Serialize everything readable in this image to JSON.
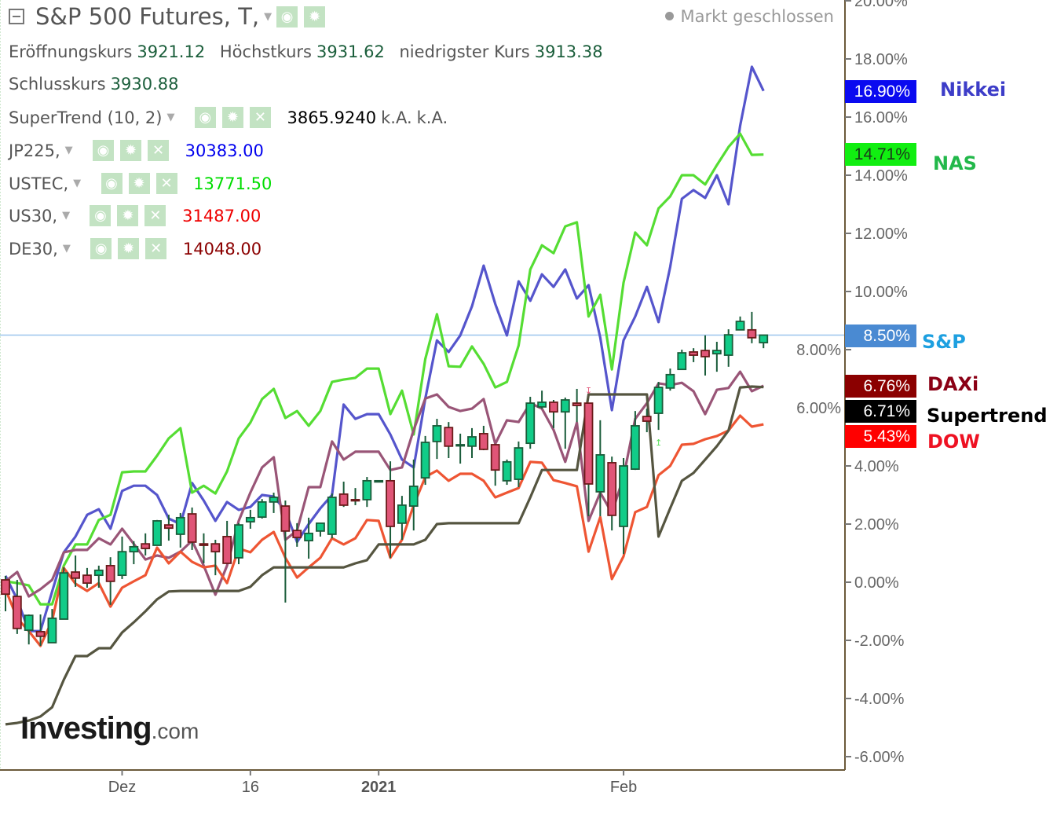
{
  "header": {
    "title": "S&P 500 Futures, T,",
    "open_label": "Eröffnungskurs",
    "open": "3921.12",
    "high_label": "Höchstkurs",
    "high": "3931.62",
    "low_label": "niedrigster Kurs",
    "low": "3913.38",
    "close_label": "Schlusskurs",
    "close": "3930.88",
    "status": "Markt geschlossen"
  },
  "indicators": [
    {
      "name": "SuperTrend (10, 2)",
      "value": "3865.9240",
      "extra1": "k.A.",
      "extra2": "k.A.",
      "color": "#000000"
    },
    {
      "name": "JP225,",
      "value": "30383.00",
      "color": "#0000ee"
    },
    {
      "name": "USTEC,",
      "value": "13771.50",
      "color": "#00dd00"
    },
    {
      "name": "US30,",
      "value": "31487.00",
      "color": "#ee0000"
    },
    {
      "name": "DE30,",
      "value": "14048.00",
      "color": "#8b0000"
    }
  ],
  "icons": {
    "eye": "eye-icon",
    "gear": "gear-icon",
    "close": "close-icon",
    "collapse": "collapse-icon",
    "dropdown": "chevron-down-icon"
  },
  "logo": {
    "main": "Investing",
    "suffix": ".com"
  },
  "right_labels": [
    {
      "value": "16.90%",
      "name": "Nikkei",
      "bg": "#0a0af0",
      "fg": "#ffffff",
      "name_color": "#3d3dc8"
    },
    {
      "value": "14.71%",
      "name": "NAS",
      "bg": "#11ee11",
      "fg": "#1a3a1a",
      "name_color": "#22b84a"
    },
    {
      "value": "8.50%",
      "name": "S&P",
      "bg": "#4a8ad2",
      "fg": "#ffffff",
      "name_color": "#1ea0e0"
    },
    {
      "value": "6.76%",
      "name": "DAXi",
      "bg": "#8b0000",
      "fg": "#ffffff",
      "name_color": "#8b0015"
    },
    {
      "value": "6.71%",
      "name": "Supertrend",
      "bg": "#000000",
      "fg": "#ffffff",
      "name_color": "#000000"
    },
    {
      "value": "5.43%",
      "name": "DOW",
      "bg": "#ff0000",
      "fg": "#ffffff",
      "name_color": "#ee1122"
    }
  ],
  "chart_data": {
    "type": "line",
    "yunit": "%",
    "ylim": [
      -6.46,
      20.03
    ],
    "yticks": [
      "-6.00%",
      "-4.00%",
      "-2.00%",
      "0.00%",
      "2.00%",
      "4.00%",
      "6.00%",
      "8.00%",
      "10.00%",
      "12.00%",
      "14.00%",
      "16.00%",
      "18.00%",
      "20.00%"
    ],
    "ytick_values": [
      -6,
      -4,
      -2,
      0,
      2,
      4,
      6,
      8,
      10,
      12,
      14,
      16,
      18,
      20
    ],
    "xticks": [
      {
        "label": "Dez",
        "date": "2020-12-01",
        "bold": false
      },
      {
        "label": "16",
        "date": "2020-12-16",
        "bold": false
      },
      {
        "label": "2021",
        "date": "2021-01-01",
        "bold": true
      },
      {
        "label": "Feb",
        "date": "2021-02-01",
        "bold": false
      }
    ],
    "grid": false,
    "reference_line": 8.5,
    "dates": [
      "2020-11-17",
      "2020-11-18",
      "2020-11-19",
      "2020-11-20",
      "2020-11-23",
      "2020-11-24",
      "2020-11-25",
      "2020-11-26",
      "2020-11-27",
      "2020-11-30",
      "2020-12-01",
      "2020-12-02",
      "2020-12-03",
      "2020-12-04",
      "2020-12-07",
      "2020-12-08",
      "2020-12-09",
      "2020-12-10",
      "2020-12-11",
      "2020-12-14",
      "2020-12-15",
      "2020-12-16",
      "2020-12-17",
      "2020-12-18",
      "2020-12-21",
      "2020-12-22",
      "2020-12-23",
      "2020-12-24",
      "2020-12-28",
      "2020-12-29",
      "2020-12-30",
      "2020-12-31",
      "2021-01-01",
      "2021-01-04",
      "2021-01-05",
      "2021-01-06",
      "2021-01-07",
      "2021-01-08",
      "2021-01-11",
      "2021-01-12",
      "2021-01-13",
      "2021-01-14",
      "2021-01-15",
      "2021-01-18",
      "2021-01-19",
      "2021-01-20",
      "2021-01-21",
      "2021-01-22",
      "2021-01-25",
      "2021-01-26",
      "2021-01-27",
      "2021-01-28",
      "2021-01-29",
      "2021-02-01",
      "2021-02-02",
      "2021-02-03",
      "2021-02-04",
      "2021-02-05",
      "2021-02-08",
      "2021-02-09",
      "2021-02-10",
      "2021-02-11",
      "2021-02-12",
      "2021-02-15",
      "2021-02-16",
      "2021-02-17"
    ],
    "series": [
      {
        "name": "Nikkei",
        "color": "#5555cc",
        "values": [
          0.22,
          -0.59,
          -1.68,
          -1.68,
          -0.32,
          1.03,
          1.57,
          2.32,
          2.51,
          1.84,
          3.14,
          3.32,
          3.32,
          3.0,
          2.19,
          2.0,
          3.41,
          2.81,
          2.11,
          2.76,
          2.49,
          2.59,
          3.0,
          2.95,
          2.46,
          1.38,
          2.0,
          2.54,
          3.0,
          6.11,
          5.62,
          5.78,
          5.78,
          5.08,
          4.22,
          3.95,
          6.32,
          8.32,
          7.92,
          8.49,
          9.49,
          10.89,
          9.57,
          8.49,
          10.35,
          9.68,
          10.59,
          10.16,
          10.76,
          9.76,
          10.22,
          8.41,
          5.92,
          8.32,
          9.14,
          10.16,
          8.95,
          10.84,
          13.19,
          13.49,
          13.22,
          14.0,
          13.0,
          15.7,
          17.73,
          16.9
        ]
      },
      {
        "name": "NAS",
        "color": "#55dd33",
        "values": [
          0.03,
          -0.03,
          -0.11,
          -0.76,
          -0.76,
          0.57,
          1.3,
          1.3,
          2.14,
          2.32,
          3.78,
          3.81,
          3.81,
          4.35,
          4.95,
          5.3,
          3.08,
          3.32,
          3.05,
          3.81,
          4.95,
          5.49,
          6.3,
          6.65,
          5.65,
          5.89,
          5.38,
          5.89,
          6.89,
          6.97,
          7.03,
          7.35,
          7.35,
          5.78,
          6.59,
          5.08,
          7.68,
          9.22,
          7.43,
          7.41,
          8.11,
          7.51,
          6.7,
          6.89,
          8.14,
          10.76,
          11.59,
          11.32,
          12.24,
          12.38,
          9.14,
          9.89,
          7.32,
          10.3,
          12.03,
          11.59,
          12.86,
          13.27,
          14.0,
          14.0,
          13.68,
          14.35,
          14.97,
          15.43,
          14.7,
          14.71
        ]
      },
      {
        "name": "DAXi",
        "color": "#995577",
        "values": [
          0.03,
          0.35,
          -0.49,
          -0.24,
          0.08,
          1.03,
          1.11,
          1.11,
          1.51,
          1.3,
          1.84,
          1.32,
          0.78,
          0.92,
          0.84,
          1.05,
          1.43,
          0.57,
          -0.43,
          0.57,
          2.11,
          3.08,
          3.95,
          4.3,
          1.46,
          1.78,
          3.27,
          3.27,
          4.84,
          4.22,
          4.49,
          4.49,
          4.49,
          3.86,
          3.95,
          5.24,
          6.32,
          6.46,
          6.03,
          5.89,
          5.97,
          6.3,
          4.76,
          5.57,
          5.51,
          6.16,
          5.97,
          5.24,
          4.14,
          5.49,
          2.11,
          3.08,
          2.38,
          3.62,
          5.62,
          6.16,
          6.84,
          6.78,
          6.86,
          6.57,
          5.78,
          6.62,
          6.68,
          7.24,
          6.57,
          6.76
        ]
      },
      {
        "name": "DOW",
        "color": "#ee5533",
        "values": [
          -0.24,
          -1.24,
          -1.68,
          -2.19,
          -1.32,
          0.49,
          -0.05,
          -0.3,
          -0.03,
          -0.84,
          -0.19,
          0.03,
          0.24,
          1.19,
          0.65,
          1.05,
          0.7,
          0.51,
          0.57,
          -0.03,
          1.16,
          1.03,
          1.46,
          1.73,
          0.84,
          0.16,
          0.51,
          0.84,
          1.51,
          1.3,
          1.51,
          2.14,
          2.11,
          0.84,
          1.46,
          2.65,
          3.62,
          3.84,
          3.49,
          3.73,
          3.73,
          3.49,
          2.92,
          3.08,
          3.24,
          4.14,
          4.11,
          3.51,
          3.41,
          3.3,
          1.05,
          2.24,
          0.11,
          0.89,
          2.41,
          2.59,
          3.68,
          4.0,
          4.73,
          4.76,
          4.92,
          5.03,
          5.22,
          5.73,
          5.35,
          5.43
        ]
      },
      {
        "name": "Supertrend",
        "color": "#555540",
        "values": [
          -4.89,
          -4.84,
          -4.76,
          -4.62,
          -4.3,
          -3.35,
          -2.54,
          -2.54,
          -2.27,
          -2.27,
          -1.73,
          -1.38,
          -1.0,
          -0.59,
          -0.32,
          -0.3,
          -0.3,
          -0.3,
          -0.3,
          -0.3,
          -0.3,
          -0.16,
          0.24,
          0.51,
          0.51,
          0.51,
          0.51,
          0.51,
          0.51,
          0.51,
          0.65,
          0.76,
          1.3,
          1.3,
          1.3,
          1.3,
          1.46,
          2.0,
          2.03,
          2.03,
          2.03,
          2.03,
          2.03,
          2.03,
          2.03,
          2.92,
          3.86,
          3.86,
          3.86,
          3.86,
          6.46,
          6.46,
          6.46,
          6.46,
          6.46,
          6.46,
          1.57,
          2.54,
          3.49,
          3.76,
          4.22,
          4.68,
          5.22,
          6.7,
          6.73,
          6.71
        ]
      }
    ],
    "candles": {
      "name": "S&P",
      "up_color": "#11cc88",
      "down_color": "#e05577",
      "ohlc": [
        [
          0.08,
          0.22,
          -1.0,
          -0.41
        ],
        [
          -0.49,
          0.08,
          -1.78,
          -1.59
        ],
        [
          -1.65,
          -1.11,
          -2.14,
          -1.14
        ],
        [
          -1.7,
          -1.11,
          -2.19,
          -1.86
        ],
        [
          -2.08,
          -0.92,
          -2.08,
          -1.24
        ],
        [
          -1.27,
          0.51,
          -1.27,
          0.32
        ],
        [
          0.35,
          0.92,
          -0.16,
          0.14
        ],
        [
          0.24,
          0.49,
          -0.19,
          -0.03
        ],
        [
          0.24,
          0.57,
          -0.19,
          0.41
        ],
        [
          0.57,
          0.86,
          -0.78,
          0.03
        ],
        [
          0.24,
          1.57,
          0.11,
          1.05
        ],
        [
          1.05,
          1.41,
          0.62,
          1.22
        ],
        [
          1.32,
          1.68,
          0.92,
          1.16
        ],
        [
          1.27,
          2.14,
          1.27,
          2.11
        ],
        [
          1.97,
          2.32,
          1.43,
          1.86
        ],
        [
          1.65,
          2.38,
          1.19,
          2.22
        ],
        [
          2.35,
          2.57,
          1.11,
          1.38
        ],
        [
          1.32,
          1.68,
          0.65,
          1.27
        ],
        [
          1.32,
          1.46,
          0.24,
          1.05
        ],
        [
          1.57,
          2.11,
          0.65,
          0.65
        ],
        [
          0.84,
          2.03,
          0.62,
          1.97
        ],
        [
          2.08,
          2.49,
          1.84,
          2.22
        ],
        [
          2.24,
          2.86,
          2.19,
          2.76
        ],
        [
          2.76,
          3.08,
          2.38,
          2.92
        ],
        [
          2.62,
          2.81,
          -0.7,
          1.76
        ],
        [
          1.78,
          2.03,
          1.22,
          1.54
        ],
        [
          1.43,
          2.22,
          0.81,
          1.68
        ],
        [
          1.76,
          2.03,
          1.57,
          2.03
        ],
        [
          1.65,
          3.05,
          1.51,
          2.92
        ],
        [
          3.03,
          3.46,
          2.59,
          2.65
        ],
        [
          2.84,
          3.24,
          2.65,
          2.81
        ],
        [
          2.84,
          3.62,
          2.59,
          3.49
        ],
        [
          3.49,
          3.49,
          3.49,
          3.49
        ],
        [
          3.49,
          4.16,
          0.84,
          1.92
        ],
        [
          2.03,
          2.97,
          1.46,
          2.65
        ],
        [
          2.62,
          4.22,
          1.78,
          3.3
        ],
        [
          3.59,
          5.03,
          3.35,
          4.81
        ],
        [
          4.84,
          5.62,
          4.24,
          5.38
        ],
        [
          5.32,
          5.51,
          4.27,
          4.68
        ],
        [
          4.73,
          5.11,
          4.08,
          4.73
        ],
        [
          4.68,
          5.3,
          4.27,
          5.0
        ],
        [
          5.11,
          5.38,
          4.54,
          4.57
        ],
        [
          4.73,
          4.76,
          3.32,
          3.86
        ],
        [
          3.49,
          4.22,
          3.35,
          4.14
        ],
        [
          3.54,
          4.84,
          3.27,
          4.62
        ],
        [
          4.78,
          6.38,
          4.59,
          6.16
        ],
        [
          6.03,
          6.59,
          5.97,
          6.19
        ],
        [
          6.19,
          6.27,
          5.3,
          5.86
        ],
        [
          5.86,
          6.35,
          4.59,
          6.27
        ],
        [
          6.16,
          6.65,
          5.51,
          6.08
        ],
        [
          6.16,
          6.16,
          2.27,
          3.38
        ],
        [
          3.11,
          5.57,
          2.27,
          4.38
        ],
        [
          4.11,
          4.32,
          1.78,
          2.3
        ],
        [
          1.92,
          4.27,
          0.97,
          4.0
        ],
        [
          3.89,
          5.89,
          3.86,
          5.38
        ],
        [
          5.7,
          5.97,
          5.16,
          5.54
        ],
        [
          5.81,
          6.89,
          5.24,
          6.7
        ],
        [
          6.68,
          7.35,
          6.59,
          7.14
        ],
        [
          7.32,
          8.0,
          7.32,
          7.89
        ],
        [
          7.92,
          8.05,
          7.57,
          7.81
        ],
        [
          7.97,
          8.49,
          7.11,
          7.76
        ],
        [
          7.86,
          8.27,
          7.24,
          7.97
        ],
        [
          7.81,
          8.7,
          7.41,
          8.51
        ],
        [
          8.68,
          9.14,
          8.68,
          8.97
        ],
        [
          8.68,
          9.3,
          8.22,
          8.41
        ],
        [
          8.24,
          8.51,
          8.05,
          8.5
        ]
      ]
    },
    "signals": [
      {
        "date": "2021-01-27",
        "type": "sell"
      },
      {
        "date": "2021-02-04",
        "type": "buy"
      }
    ]
  }
}
